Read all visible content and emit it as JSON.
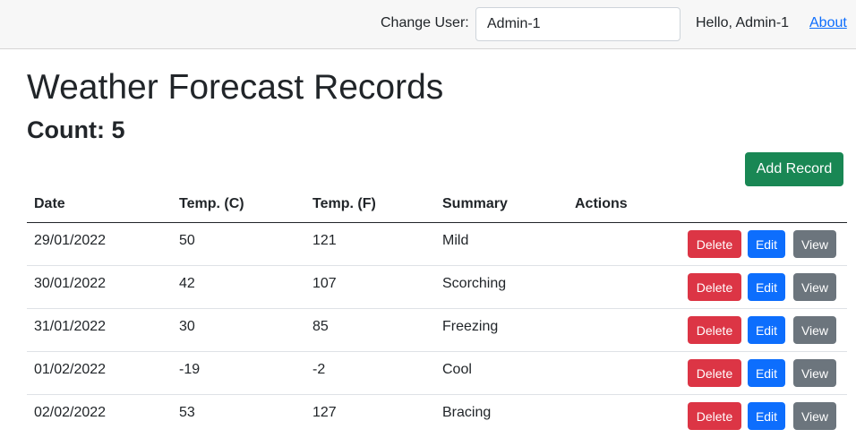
{
  "topbar": {
    "change_user_label": "Change User:",
    "user_value": "Admin-1",
    "greeting": "Hello, Admin-1",
    "about_link": "About"
  },
  "page": {
    "title": "Weather Forecast Records",
    "count_text": "Count: 5",
    "add_button": "Add Record"
  },
  "table": {
    "headers": {
      "date": "Date",
      "temp_c": "Temp. (C)",
      "temp_f": "Temp. (F)",
      "summary": "Summary",
      "actions": "Actions"
    },
    "action_labels": {
      "delete": "Delete",
      "edit": "Edit",
      "view": "View"
    },
    "rows": [
      {
        "date": "29/01/2022",
        "temp_c": "50",
        "temp_f": "121",
        "summary": "Mild"
      },
      {
        "date": "30/01/2022",
        "temp_c": "42",
        "temp_f": "107",
        "summary": "Scorching"
      },
      {
        "date": "31/01/2022",
        "temp_c": "30",
        "temp_f": "85",
        "summary": "Freezing"
      },
      {
        "date": "01/02/2022",
        "temp_c": "-19",
        "temp_f": "-2",
        "summary": "Cool"
      },
      {
        "date": "02/02/2022",
        "temp_c": "53",
        "temp_f": "127",
        "summary": "Bracing"
      }
    ]
  }
}
